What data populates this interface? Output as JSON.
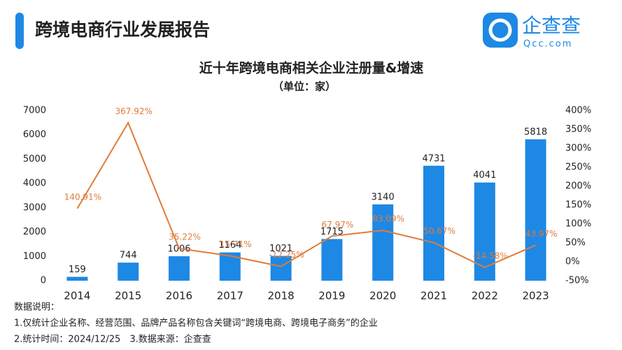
{
  "header": {
    "title": "跨境电商行业发展报告",
    "logo": "企查查",
    "domain": "Qcc.com"
  },
  "chart_data": {
    "type": "bar",
    "title": "近十年跨境电商相关企业注册量&增速",
    "subtitle": "（单位：家）",
    "categories": [
      "2014",
      "2015",
      "2016",
      "2017",
      "2018",
      "2019",
      "2020",
      "2021",
      "2022",
      "2023"
    ],
    "series": [
      {
        "type": "bar",
        "color": "#1e88e5",
        "values": [
          159,
          744,
          1006,
          1164,
          1021,
          1715,
          3140,
          4731,
          4041,
          5818
        ]
      },
      {
        "type": "line",
        "axis": "y2",
        "color": "#e07b39",
        "values": [
          140.91,
          367.92,
          35.22,
          15.71,
          -12.25,
          67.97,
          83.09,
          50.67,
          -14.58,
          43.97
        ],
        "value_labels": [
          "140.91%",
          "367.92%",
          "35.22%",
          "15.71%",
          "-12.25%",
          "67.97%",
          "83.09%",
          "50.67%",
          "-14.58%",
          "43.97%"
        ]
      }
    ],
    "ylim": [
      0,
      7000
    ],
    "yticks": [
      0,
      1000,
      2000,
      3000,
      4000,
      5000,
      6000,
      7000
    ],
    "y2lim": [
      -50,
      400
    ],
    "y2ticks": [
      {
        "value": -50,
        "label": "-50%"
      },
      {
        "value": 0,
        "label": "0%"
      },
      {
        "value": 50,
        "label": "50%"
      },
      {
        "value": 100,
        "label": "100%"
      },
      {
        "value": 150,
        "label": "150%"
      },
      {
        "value": 200,
        "label": "200%"
      },
      {
        "value": 250,
        "label": "250%"
      },
      {
        "value": 300,
        "label": "300%"
      },
      {
        "value": 350,
        "label": "350%"
      },
      {
        "value": 400,
        "label": "400%"
      }
    ]
  },
  "notes": [
    "数据说明：",
    "1.仅统计企业名称、经营范围、品牌产品名称包含关键词“跨境电商、跨境电子商务”的企业",
    "2.统计时间：2024/12/25　3.数据来源：企查查"
  ]
}
